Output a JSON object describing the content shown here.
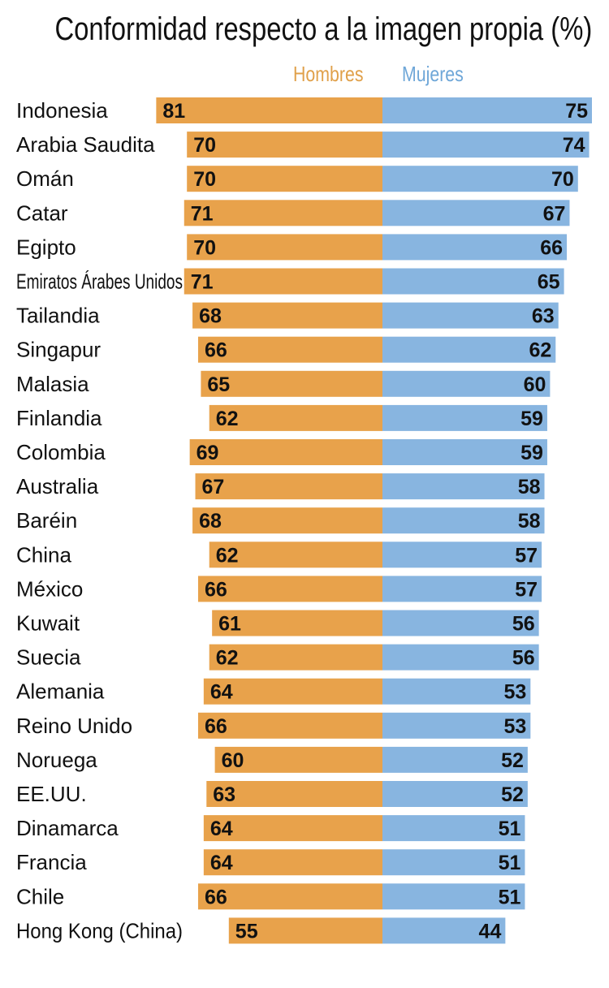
{
  "chart_data": {
    "type": "bar",
    "title": "Conformidad respecto a la imagen propia (%)",
    "categories": [
      "Indonesia",
      "Arabia Saudita",
      "Omán",
      "Catar",
      "Egipto",
      "Emiratos Árabes Unidos",
      "Tailandia",
      "Singapur",
      "Malasia",
      "Finlandia",
      "Colombia",
      "Australia",
      "Baréin",
      "China",
      "México",
      "Kuwait",
      "Suecia",
      "Alemania",
      "Reino Unido",
      "Noruega",
      "EE.UU.",
      "Dinamarca",
      "Francia",
      "Chile",
      "Hong Kong (China)"
    ],
    "series": [
      {
        "name": "Hombres",
        "color": "#e8a24b",
        "direction": "left",
        "values": [
          81,
          70,
          70,
          71,
          70,
          71,
          68,
          66,
          65,
          62,
          69,
          67,
          68,
          62,
          66,
          61,
          62,
          64,
          66,
          60,
          63,
          64,
          64,
          66,
          55
        ]
      },
      {
        "name": "Mujeres",
        "color": "#88b5e0",
        "direction": "right",
        "values": [
          75,
          74,
          70,
          67,
          66,
          65,
          63,
          62,
          60,
          59,
          59,
          58,
          58,
          57,
          57,
          56,
          56,
          53,
          53,
          52,
          52,
          51,
          51,
          51,
          44
        ]
      }
    ],
    "xlabel": "",
    "ylabel": "",
    "legend": "top-center"
  },
  "colors": {
    "text": "#111111",
    "legend_hombres": "#e0a04a",
    "legend_mujeres": "#6fa7d8"
  }
}
